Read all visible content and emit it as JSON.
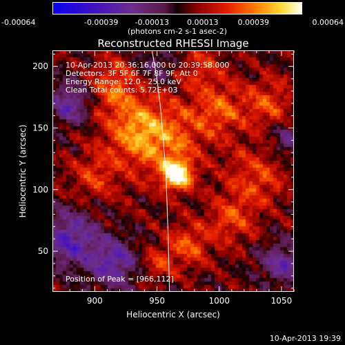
{
  "chart_data": {
    "type": "heatmap",
    "title": "Reconstructed RHESSI Image",
    "xlabel": "Heliocentric X (arcsec)",
    "ylabel": "Heliocentric Y (arcsec)",
    "xlim": [
      866,
      1060
    ],
    "ylim": [
      17,
      213
    ],
    "xticks": [
      900,
      950,
      1000,
      1050
    ],
    "xtick_labels": [
      "900",
      "950",
      "1000",
      "1050"
    ],
    "yticks": [
      50,
      100,
      150,
      200
    ],
    "ytick_labels": [
      "50",
      "100",
      "150",
      "200"
    ],
    "colorbar": {
      "unit_label": "(photons cm-2 s-1 asec-2)",
      "range": [
        -0.00064,
        0.00064
      ],
      "ticks": [
        -0.00064,
        -0.00039,
        -0.00013,
        0.00013,
        0.00039,
        0.00064
      ],
      "tick_labels": [
        "-0.00064",
        "-0.00039",
        "-0.00013",
        "0.00013",
        "0.00039",
        "0.00064"
      ]
    },
    "info_lines": [
      "10-Apr-2013 20:36:16.000 to 20:39:58.000",
      "Detectors: 3F 5F 6F 7F 8F 9F, Att 0",
      "Energy Range: 12.0 - 25.0 keV",
      "Clean     Total counts: 5.72E+03"
    ],
    "peak_label": "Position of Peak = [966,112]",
    "peak": {
      "x": 966,
      "y": 112
    },
    "limb_curve": [
      [
        946,
        213
      ],
      [
        950,
        190
      ],
      [
        953,
        165
      ],
      [
        955,
        140
      ],
      [
        957,
        115
      ],
      [
        958,
        90
      ],
      [
        959,
        60
      ],
      [
        960,
        17
      ]
    ],
    "blobs": [
      {
        "x": 966,
        "y": 112,
        "sigma": 8,
        "amp": 0.00064
      },
      {
        "x": 955,
        "y": 140,
        "sigma": 22,
        "amp": 0.0003
      },
      {
        "x": 930,
        "y": 150,
        "sigma": 18,
        "amp": 0.00025
      },
      {
        "x": 915,
        "y": 185,
        "sigma": 14,
        "amp": 0.00026
      },
      {
        "x": 1000,
        "y": 165,
        "sigma": 16,
        "amp": 0.00025
      },
      {
        "x": 1040,
        "y": 170,
        "sigma": 14,
        "amp": 0.00022
      },
      {
        "x": 1030,
        "y": 110,
        "sigma": 16,
        "amp": 0.00024
      },
      {
        "x": 1010,
        "y": 75,
        "sigma": 14,
        "amp": 0.00023
      },
      {
        "x": 975,
        "y": 55,
        "sigma": 12,
        "amp": 0.00026
      },
      {
        "x": 950,
        "y": 40,
        "sigma": 10,
        "amp": 0.0002
      },
      {
        "x": 900,
        "y": 110,
        "sigma": 14,
        "amp": 0.0002
      },
      {
        "x": 985,
        "y": 200,
        "sigma": 12,
        "amp": 0.00018
      },
      {
        "x": 880,
        "y": 170,
        "sigma": 12,
        "amp": -0.00032
      },
      {
        "x": 880,
        "y": 60,
        "sigma": 16,
        "amp": -0.00036
      },
      {
        "x": 915,
        "y": 40,
        "sigma": 14,
        "amp": -0.00035
      },
      {
        "x": 1050,
        "y": 40,
        "sigma": 12,
        "amp": -0.0003
      },
      {
        "x": 1055,
        "y": 140,
        "sigma": 10,
        "amp": -0.00022
      },
      {
        "x": 950,
        "y": 200,
        "sigma": 10,
        "amp": -0.00018
      }
    ]
  },
  "footer": {
    "timestamp": "10-Apr-2013 19:39"
  }
}
